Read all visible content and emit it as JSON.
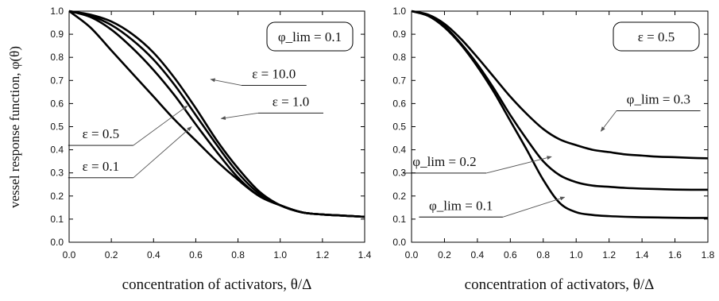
{
  "chart_data": [
    {
      "type": "line",
      "panel": "left",
      "xlabel": "concentration of activators, θ/Δ",
      "ylabel": "vessel response function, φ(θ)",
      "xlim": [
        0,
        1.4
      ],
      "ylim": [
        0,
        1
      ],
      "xticks": [
        "0.0",
        "0.2",
        "0.4",
        "0.6",
        "0.8",
        "1.0",
        "1.2",
        "1.4"
      ],
      "yticks": [
        "0.0",
        "0.1",
        "0.2",
        "0.3",
        "0.4",
        "0.5",
        "0.6",
        "0.7",
        "0.8",
        "0.9",
        "1.0"
      ],
      "boxed_label": "φ_lim = 0.1",
      "grid": false,
      "series": [
        {
          "name": "ε = 10.0",
          "x": [
            0,
            0.1,
            0.2,
            0.3,
            0.4,
            0.5,
            0.6,
            0.7,
            0.8,
            0.9,
            1.0,
            1.1,
            1.2,
            1.3,
            1.4
          ],
          "y": [
            1.0,
            0.985,
            0.955,
            0.9,
            0.82,
            0.71,
            0.58,
            0.44,
            0.32,
            0.22,
            0.16,
            0.13,
            0.12,
            0.115,
            0.11
          ]
        },
        {
          "name": "ε = 1.0",
          "x": [
            0,
            0.1,
            0.2,
            0.3,
            0.4,
            0.5,
            0.6,
            0.7,
            0.8,
            0.9,
            1.0,
            1.1,
            1.2,
            1.3,
            1.4
          ],
          "y": [
            1.0,
            0.98,
            0.94,
            0.875,
            0.79,
            0.68,
            0.55,
            0.42,
            0.3,
            0.21,
            0.16,
            0.13,
            0.12,
            0.115,
            0.11
          ]
        },
        {
          "name": "ε = 0.5",
          "x": [
            0,
            0.1,
            0.2,
            0.3,
            0.4,
            0.5,
            0.6,
            0.7,
            0.8,
            0.9,
            1.0,
            1.1,
            1.2,
            1.3,
            1.4
          ],
          "y": [
            1.0,
            0.975,
            0.92,
            0.84,
            0.745,
            0.635,
            0.51,
            0.39,
            0.28,
            0.2,
            0.16,
            0.13,
            0.12,
            0.115,
            0.11
          ]
        },
        {
          "name": "ε = 0.1",
          "x": [
            0,
            0.1,
            0.2,
            0.3,
            0.4,
            0.5,
            0.6,
            0.7,
            0.8,
            0.9,
            1.0,
            1.1,
            1.2,
            1.3,
            1.4
          ],
          "y": [
            1.0,
            0.93,
            0.83,
            0.73,
            0.63,
            0.53,
            0.44,
            0.35,
            0.27,
            0.2,
            0.16,
            0.13,
            0.12,
            0.115,
            0.11
          ]
        }
      ],
      "annotations": [
        {
          "label": "ε = 10.0",
          "series": "ε = 10.0",
          "text_x": 0.97,
          "text_y": 0.71,
          "tip_x": 0.67,
          "tip_y": 0.705
        },
        {
          "label": "ε = 1.0",
          "series": "ε = 1.0",
          "text_x": 1.05,
          "text_y": 0.59,
          "tip_x": 0.72,
          "tip_y": 0.535
        },
        {
          "label": "ε = 0.5",
          "series": "ε = 0.5",
          "text_x": 0.15,
          "text_y": 0.45,
          "tip_x": 0.56,
          "tip_y": 0.59
        },
        {
          "label": "ε = 0.1",
          "series": "ε = 0.1",
          "text_x": 0.15,
          "text_y": 0.31,
          "tip_x": 0.58,
          "tip_y": 0.5
        }
      ]
    },
    {
      "type": "line",
      "panel": "right",
      "xlabel": "concentration of activators, θ/Δ",
      "xlim": [
        0,
        1.8
      ],
      "ylim": [
        0,
        1
      ],
      "xticks": [
        "0.0",
        "0.2",
        "0.4",
        "0.6",
        "0.8",
        "1.0",
        "1.2",
        "1.4",
        "1.6",
        "1.8"
      ],
      "yticks": [
        "0.0",
        "0.1",
        "0.2",
        "0.3",
        "0.4",
        "0.5",
        "0.6",
        "0.7",
        "0.8",
        "0.9",
        "1.0"
      ],
      "boxed_label": "ε = 0.5",
      "grid": false,
      "series": [
        {
          "name": "φ_lim = 0.3",
          "x": [
            0,
            0.1,
            0.2,
            0.3,
            0.4,
            0.5,
            0.6,
            0.7,
            0.8,
            0.9,
            1.0,
            1.1,
            1.2,
            1.3,
            1.4,
            1.5,
            1.6,
            1.7,
            1.8
          ],
          "y": [
            1.0,
            0.985,
            0.945,
            0.88,
            0.8,
            0.715,
            0.63,
            0.555,
            0.49,
            0.445,
            0.42,
            0.4,
            0.39,
            0.38,
            0.375,
            0.37,
            0.368,
            0.365,
            0.363
          ]
        },
        {
          "name": "φ_lim = 0.2",
          "x": [
            0,
            0.1,
            0.2,
            0.3,
            0.4,
            0.5,
            0.6,
            0.7,
            0.8,
            0.9,
            1.0,
            1.1,
            1.2,
            1.3,
            1.4,
            1.5,
            1.6,
            1.7,
            1.8
          ],
          "y": [
            1.0,
            0.98,
            0.935,
            0.86,
            0.77,
            0.665,
            0.55,
            0.445,
            0.35,
            0.29,
            0.26,
            0.245,
            0.24,
            0.235,
            0.232,
            0.23,
            0.228,
            0.227,
            0.227
          ]
        },
        {
          "name": "φ_lim = 0.1",
          "x": [
            0,
            0.1,
            0.2,
            0.3,
            0.4,
            0.5,
            0.6,
            0.7,
            0.8,
            0.9,
            1.0,
            1.1,
            1.2,
            1.3,
            1.4,
            1.5,
            1.6,
            1.7,
            1.8
          ],
          "y": [
            1.0,
            0.98,
            0.93,
            0.855,
            0.76,
            0.65,
            0.525,
            0.4,
            0.27,
            0.17,
            0.13,
            0.118,
            0.113,
            0.11,
            0.108,
            0.107,
            0.106,
            0.105,
            0.105
          ]
        }
      ],
      "annotations": [
        {
          "label": "φ_lim = 0.3",
          "series": "φ_lim = 0.3",
          "text_x": 1.5,
          "text_y": 0.6,
          "tip_x": 1.15,
          "tip_y": 0.48
        },
        {
          "label": "φ_lim = 0.2",
          "series": "φ_lim = 0.2",
          "text_x": 0.2,
          "text_y": 0.33,
          "tip_x": 0.85,
          "tip_y": 0.37
        },
        {
          "label": "φ_lim = 0.1",
          "series": "φ_lim = 0.1",
          "text_x": 0.3,
          "text_y": 0.14,
          "tip_x": 0.93,
          "tip_y": 0.195
        }
      ]
    }
  ]
}
